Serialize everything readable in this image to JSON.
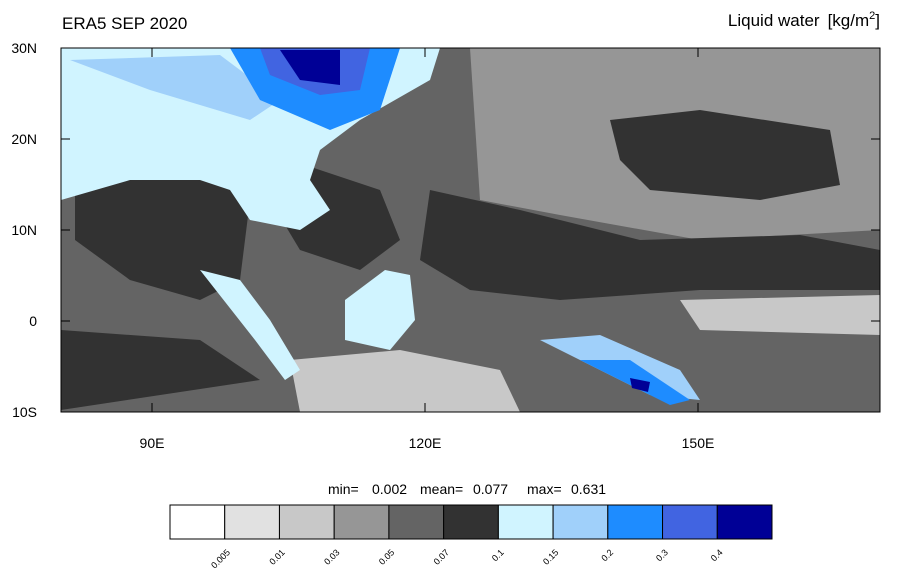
{
  "header": {
    "title": "ERA5 SEP 2020",
    "variable": "Liquid water",
    "units_base": "[kg/m",
    "units_exponent": "2",
    "units_close": "]"
  },
  "map": {
    "lon_range": [
      80,
      170
    ],
    "lat_range": [
      -10,
      30
    ],
    "lat_ticks": [
      {
        "value": 30,
        "label": "30N"
      },
      {
        "value": 20,
        "label": "20N"
      },
      {
        "value": 10,
        "label": "10N"
      },
      0,
      {
        "value": -10,
        "label": "10S"
      }
    ],
    "lon_ticks": [
      {
        "value": 90,
        "label": "90E"
      },
      {
        "value": 120,
        "label": "120E"
      },
      {
        "value": 150,
        "label": "150E"
      }
    ]
  },
  "stats": [
    {
      "label": "min=",
      "value": 0.002
    },
    {
      "label": "mean=",
      "value": 0.077
    },
    {
      "label": "max=",
      "value": 0.631
    }
  ],
  "colorbar": {
    "colors": [
      "#ffffff",
      "#e1e1e1",
      "#c8c8c8",
      "#969696",
      "#646464",
      "#323232",
      "#d0f4ff",
      "#a0d0fa",
      "#1e8cff",
      "#4164e1",
      "#000096"
    ],
    "levels": [
      0.005,
      0.01,
      0.03,
      0.05,
      0.07,
      0.1,
      0.15,
      0.2,
      0.3,
      0.4
    ]
  }
}
